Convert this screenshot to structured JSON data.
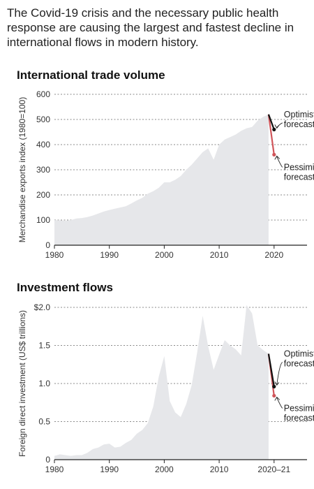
{
  "intro": "The Covid-19 crisis and the necessary public health response are causing the largest and fastest decline in international flows in modern history.",
  "colors": {
    "area": "#e6e7ea",
    "optimistic": "#111111",
    "pessimistic": "#d0555a",
    "grid": "#888888"
  },
  "chart_data": [
    {
      "type": "area",
      "title": "International trade volume",
      "ylabel": "Merchandise exports index (1980=100)",
      "xlim": [
        1980,
        2026
      ],
      "ylim": [
        0,
        600
      ],
      "x_ticks": [
        1980,
        1990,
        2000,
        2010,
        2020
      ],
      "x_tick_labels": [
        "1980",
        "1990",
        "2000",
        "2010",
        "2020"
      ],
      "y_ticks": [
        0,
        100,
        200,
        300,
        400,
        500,
        600
      ],
      "y_tick_labels": [
        "0",
        "100",
        "200",
        "300",
        "400",
        "500",
        "600"
      ],
      "grid": true,
      "series": [
        {
          "x": [
            1980,
            1981,
            1982,
            1983,
            1984,
            1985,
            1986,
            1987,
            1988,
            1989,
            1990,
            1991,
            1992,
            1993,
            1994,
            1995,
            1996,
            1997,
            1998,
            1999,
            2000,
            2001,
            2002,
            2003,
            2004,
            2005,
            2006,
            2007,
            2008,
            2009,
            2010,
            2011,
            2012,
            2013,
            2014,
            2015,
            2016,
            2017,
            2018,
            2019
          ],
          "y": [
            100,
            99,
            97,
            100,
            106,
            108,
            112,
            118,
            126,
            134,
            140,
            145,
            150,
            155,
            166,
            178,
            188,
            205,
            215,
            228,
            250,
            250,
            260,
            275,
            300,
            320,
            345,
            370,
            385,
            340,
            400,
            420,
            430,
            440,
            455,
            465,
            470,
            495,
            510,
            520
          ]
        }
      ],
      "forecasts": {
        "start": {
          "x": 2019,
          "y": 520
        },
        "optimistic": {
          "x": 2020,
          "y": 460
        },
        "pessimistic": {
          "x": 2020,
          "y": 360
        }
      },
      "annotations": {
        "optimistic": [
          "Optimistic",
          "forecast"
        ],
        "pessimistic": [
          "Pessimistic",
          "forecast"
        ]
      }
    },
    {
      "type": "area",
      "title": "Investment flows",
      "ylabel": "Foreign direct investment (US$ trillions)",
      "xlim": [
        1980,
        2026
      ],
      "ylim": [
        0,
        2.0
      ],
      "x_ticks": [
        1980,
        1990,
        2000,
        2010,
        2020
      ],
      "x_tick_labels": [
        "1980",
        "1990",
        "2000",
        "2010",
        "2020–21"
      ],
      "y_ticks": [
        0,
        0.5,
        1.0,
        1.5,
        2.0
      ],
      "y_tick_labels": [
        "0",
        "0.5",
        "1.0",
        "1.5",
        "$2.0"
      ],
      "grid": true,
      "series": [
        {
          "x": [
            1980,
            1981,
            1982,
            1983,
            1984,
            1985,
            1986,
            1987,
            1988,
            1989,
            1990,
            1991,
            1992,
            1993,
            1994,
            1995,
            1996,
            1997,
            1998,
            1999,
            2000,
            2001,
            2002,
            2003,
            2004,
            2005,
            2006,
            2007,
            2008,
            2009,
            2010,
            2011,
            2012,
            2013,
            2014,
            2015,
            2016,
            2017,
            2018,
            2019
          ],
          "y": [
            0.05,
            0.07,
            0.06,
            0.05,
            0.06,
            0.06,
            0.09,
            0.14,
            0.16,
            0.2,
            0.21,
            0.16,
            0.17,
            0.22,
            0.26,
            0.34,
            0.39,
            0.48,
            0.7,
            1.09,
            1.36,
            0.77,
            0.62,
            0.56,
            0.73,
            0.98,
            1.41,
            1.89,
            1.49,
            1.18,
            1.38,
            1.57,
            1.5,
            1.45,
            1.37,
            2.03,
            1.92,
            1.5,
            1.44,
            1.39
          ]
        }
      ],
      "forecasts": {
        "start": {
          "x": 2019,
          "y": 1.39
        },
        "optimistic": {
          "x": 2020,
          "y": 0.96
        },
        "pessimistic": {
          "x": 2020,
          "y": 0.84
        }
      },
      "annotations": {
        "optimistic": [
          "Optimistic",
          "forecast"
        ],
        "pessimistic": [
          "Pessimistic",
          "forecast"
        ]
      }
    }
  ]
}
